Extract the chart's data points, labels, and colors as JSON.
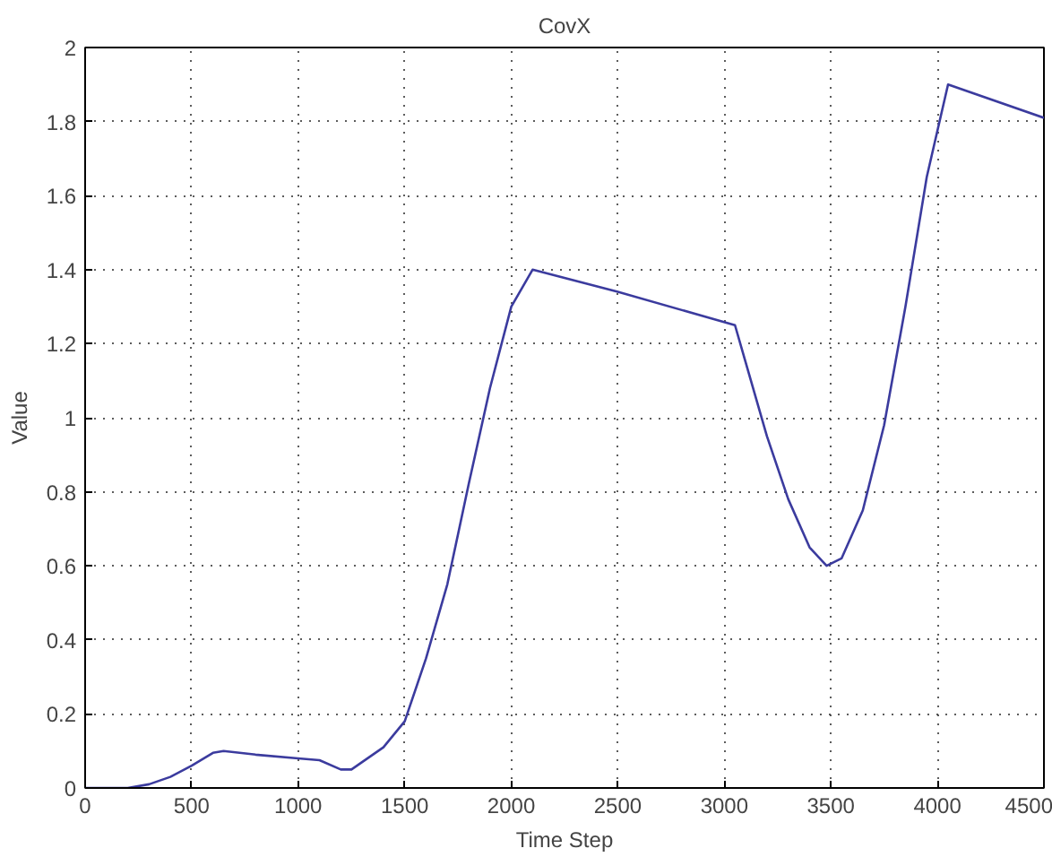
{
  "chart_data": {
    "type": "line",
    "title": "CovX",
    "xlabel": "Time Step",
    "ylabel": "Value",
    "xlim": [
      0,
      4500
    ],
    "ylim": [
      0,
      2
    ],
    "xticks": [
      0,
      500,
      1000,
      1500,
      2000,
      2500,
      3000,
      3500,
      4000,
      4500
    ],
    "yticks": [
      0,
      0.2,
      0.4,
      0.6,
      0.8,
      1,
      1.2,
      1.4,
      1.6,
      1.8,
      2
    ],
    "grid": true,
    "line_style": "solid",
    "series": [
      {
        "color": "#3b3b9e",
        "x": [
          0,
          200,
          300,
          400,
          500,
          600,
          650,
          800,
          1000,
          1100,
          1200,
          1250,
          1300,
          1400,
          1500,
          1600,
          1700,
          1800,
          1900,
          2000,
          2100,
          2500,
          3050,
          3100,
          3200,
          3300,
          3400,
          3480,
          3550,
          3650,
          3750,
          3850,
          3950,
          4050,
          4500
        ],
        "values": [
          0,
          0,
          0.01,
          0.03,
          0.06,
          0.095,
          0.1,
          0.09,
          0.08,
          0.075,
          0.05,
          0.05,
          0.07,
          0.11,
          0.18,
          0.35,
          0.55,
          0.82,
          1.08,
          1.3,
          1.4,
          1.34,
          1.25,
          1.15,
          0.95,
          0.78,
          0.65,
          0.6,
          0.62,
          0.75,
          0.98,
          1.3,
          1.65,
          1.9,
          1.81
        ]
      }
    ]
  }
}
